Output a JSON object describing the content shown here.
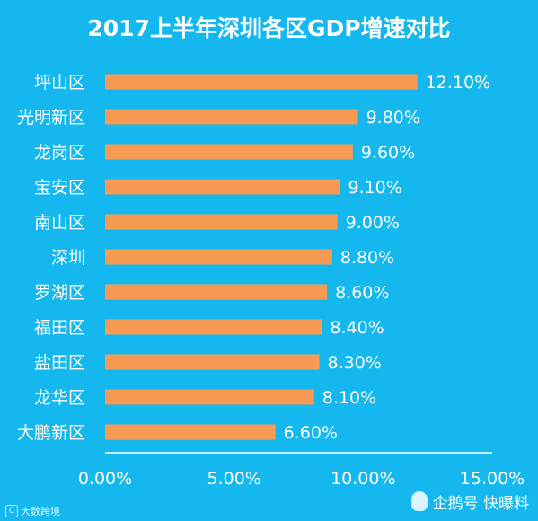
{
  "chart_data": {
    "type": "bar",
    "orientation": "horizontal",
    "title": "2017上半年深圳各区GDP增速对比",
    "categories": [
      "坪山区",
      "光明新区",
      "龙岗区",
      "宝安区",
      "南山区",
      "深圳",
      "罗湖区",
      "福田区",
      "盐田区",
      "龙华区",
      "大鹏新区"
    ],
    "values": [
      12.1,
      9.8,
      9.6,
      9.1,
      9.0,
      8.8,
      8.6,
      8.4,
      8.3,
      8.1,
      6.6
    ],
    "value_labels": [
      "12.10%",
      "9.80%",
      "9.60%",
      "9.10%",
      "9.00%",
      "8.80%",
      "8.60%",
      "8.40%",
      "8.30%",
      "8.10%",
      "6.60%"
    ],
    "xlim": [
      0,
      15
    ],
    "xticks": [
      0,
      5,
      10,
      15
    ],
    "xtick_labels": [
      "0.00%",
      "5.00%",
      "10.00%",
      "15.00%"
    ],
    "grid": false,
    "legend": "none",
    "bar_color": "#f79a53",
    "background_color": "#14b8ee",
    "text_color": "#ffffff"
  },
  "watermarks": {
    "left_logo": "C",
    "left_text": "大数跨境",
    "right_icon": "penguin-icon",
    "right_text": "企鹅号 快曝料"
  }
}
